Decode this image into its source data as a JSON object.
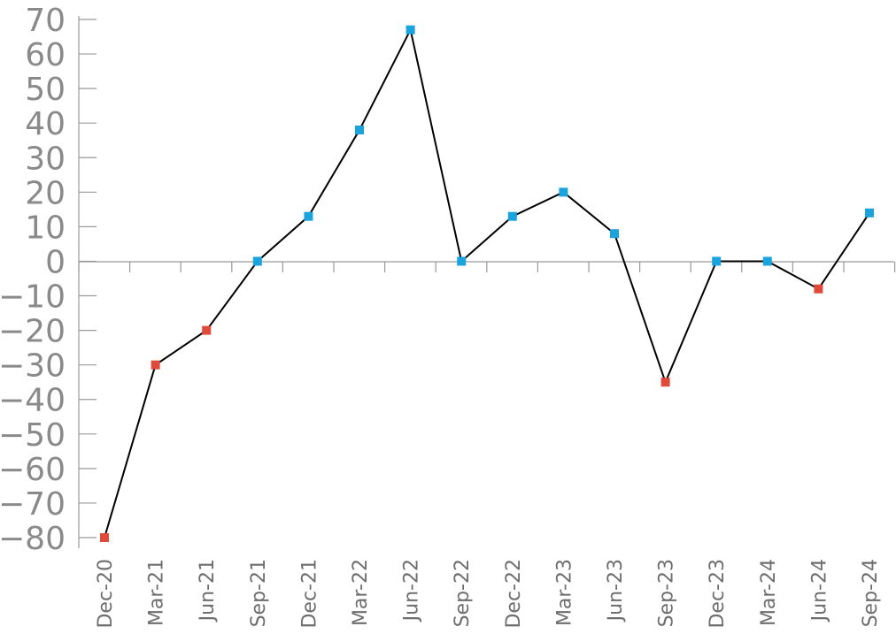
{
  "chart_data": {
    "type": "line",
    "title": "",
    "xlabel": "",
    "ylabel": "",
    "categories": [
      "Dec-20",
      "Mar-21",
      "Jun-21",
      "Sep-21",
      "Dec-21",
      "Mar-22",
      "Jun-22",
      "Sep-22",
      "Dec-22",
      "Mar-23",
      "Jun-23",
      "Sep-23",
      "Dec-23",
      "Mar-24",
      "Jun-24",
      "Sep-24"
    ],
    "series": [
      {
        "values": [
          -80,
          -30,
          -20,
          0,
          13,
          38,
          67,
          0,
          13,
          20,
          8,
          -35,
          0,
          0,
          -8,
          14
        ]
      }
    ],
    "ylim": [
      -80,
      70
    ],
    "yticks": [
      70,
      60,
      50,
      40,
      30,
      20,
      10,
      0,
      -10,
      -20,
      -30,
      -40,
      -50,
      -60,
      -70,
      -80
    ],
    "grid": false,
    "line_color": "#000000",
    "positive_marker_color": "#1aa3dd",
    "negative_marker_color": "#e04a3a",
    "axis_color": "#9a9a9a"
  }
}
